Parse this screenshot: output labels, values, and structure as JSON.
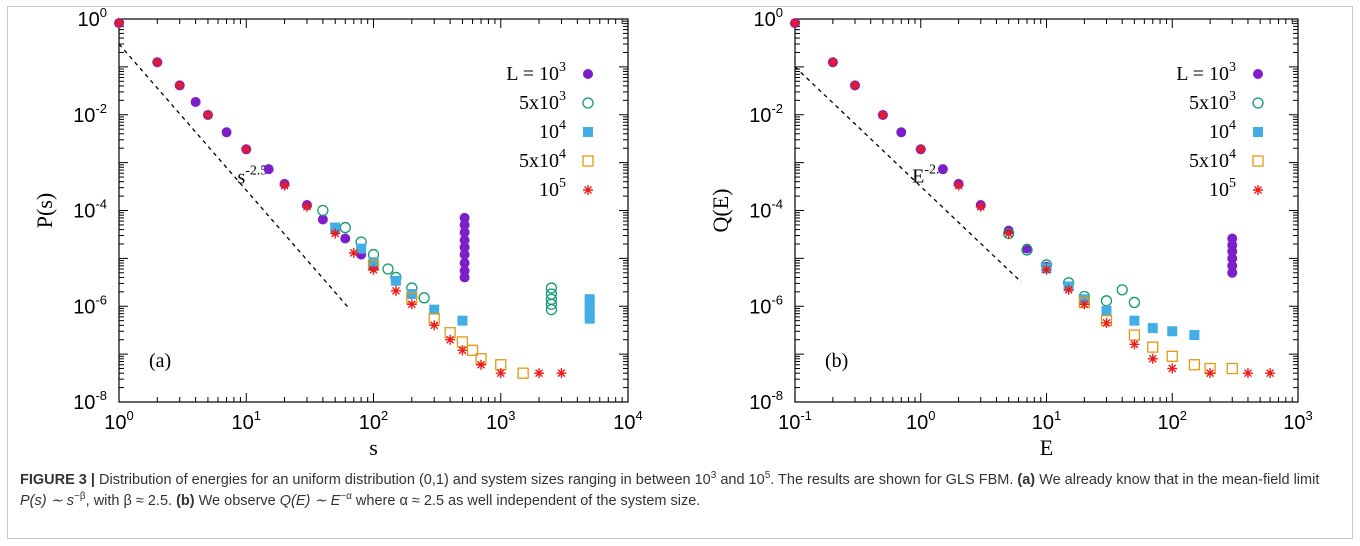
{
  "chart_data": [
    {
      "type": "scatter",
      "panel_label": "(a)",
      "xlabel": "s",
      "ylabel": "P(s)",
      "xscale": "log",
      "yscale": "log",
      "xlim": [
        1,
        10000
      ],
      "ylim": [
        1e-08,
        1
      ],
      "x_ticks": [
        {
          "base": "10",
          "exp": "0"
        },
        {
          "base": "10",
          "exp": "1"
        },
        {
          "base": "10",
          "exp": "2"
        },
        {
          "base": "10",
          "exp": "3"
        },
        {
          "base": "10",
          "exp": "4"
        }
      ],
      "y_ticks": [
        {
          "base": "10",
          "exp": "0"
        },
        {
          "base": "10",
          "exp": "-2"
        },
        {
          "base": "10",
          "exp": "-4"
        },
        {
          "base": "10",
          "exp": "-6"
        },
        {
          "base": "10",
          "exp": "-8"
        }
      ],
      "annotation": {
        "base": "s",
        "exp": "-2.5"
      },
      "reference_line": {
        "slope": -2.5,
        "points": [
          [
            1,
            0.3
          ],
          [
            63,
            9.6e-07
          ]
        ]
      },
      "legend_position": "top-right",
      "series": [
        {
          "name": "L = 10^3",
          "label": {
            "base": "L = 10",
            "exp": "3"
          },
          "marker": "filled-circle",
          "color": "#7d1fc8",
          "points": [
            [
              1,
              0.82
            ],
            [
              2,
              0.125
            ],
            [
              3,
              0.041
            ],
            [
              4,
              0.0185
            ],
            [
              5,
              0.0099
            ],
            [
              7,
              0.0043
            ],
            [
              10,
              0.0019
            ],
            [
              15,
              0.00073
            ],
            [
              20,
              0.00036
            ],
            [
              30,
              0.00013
            ],
            [
              40,
              6.5e-05
            ],
            [
              50,
              3.8e-05
            ],
            [
              60,
              2.6e-05
            ],
            [
              80,
              1.2e-05
            ],
            [
              100,
              6.7e-06
            ],
            [
              520,
              7e-05
            ],
            [
              520,
              5e-05
            ],
            [
              520,
              3.5e-05
            ],
            [
              520,
              2.4e-05
            ],
            [
              520,
              1.7e-05
            ],
            [
              520,
              1.2e-05
            ],
            [
              520,
              8e-06
            ],
            [
              520,
              5.5e-06
            ],
            [
              520,
              4e-06
            ]
          ]
        },
        {
          "name": "5x10^3",
          "label": {
            "base": "5x10",
            "exp": "3"
          },
          "marker": "open-circle",
          "color": "#119a72",
          "points": [
            [
              40,
              0.0001
            ],
            [
              60,
              4.4e-05
            ],
            [
              80,
              2.2e-05
            ],
            [
              100,
              1.2e-05
            ],
            [
              130,
              6e-06
            ],
            [
              150,
              4e-06
            ],
            [
              200,
              2.4e-06
            ],
            [
              250,
              1.5e-06
            ],
            [
              2500,
              2.4e-06
            ],
            [
              2500,
              1.8e-06
            ],
            [
              2500,
              1.4e-06
            ],
            [
              2500,
              1.1e-06
            ],
            [
              2500,
              8.5e-07
            ]
          ]
        },
        {
          "name": "10^4",
          "label": {
            "base": "10",
            "exp": "4"
          },
          "marker": "filled-square",
          "color": "#43aee5",
          "points": [
            [
              50,
              4.4e-05
            ],
            [
              80,
              1.6e-05
            ],
            [
              100,
              8.3e-06
            ],
            [
              150,
              3.4e-06
            ],
            [
              200,
              1.8e-06
            ],
            [
              300,
              8.5e-07
            ],
            [
              500,
              5e-07
            ],
            [
              5000,
              1.4e-06
            ],
            [
              5000,
              1e-06
            ],
            [
              5000,
              7.5e-07
            ],
            [
              5000,
              5.5e-07
            ]
          ]
        },
        {
          "name": "5x10^4",
          "label": {
            "base": "5x10",
            "exp": "4"
          },
          "marker": "open-square",
          "color": "#e39a10",
          "points": [
            [
              100,
              7.2e-06
            ],
            [
              200,
              1.5e-06
            ],
            [
              300,
              5.5e-07
            ],
            [
              400,
              2.8e-07
            ],
            [
              500,
              1.8e-07
            ],
            [
              600,
              1.2e-07
            ],
            [
              700,
              8e-08
            ],
            [
              1000,
              6e-08
            ],
            [
              1500,
              4e-08
            ]
          ]
        },
        {
          "name": "10^5",
          "label": {
            "base": "10",
            "exp": "5"
          },
          "marker": "asterisk",
          "color": "#ee1b1b",
          "points": [
            [
              1,
              0.82
            ],
            [
              2,
              0.125
            ],
            [
              3,
              0.041
            ],
            [
              5,
              0.0099
            ],
            [
              10,
              0.0019
            ],
            [
              20,
              0.00033
            ],
            [
              30,
              0.00012
            ],
            [
              50,
              3.3e-05
            ],
            [
              70,
              1.3e-05
            ],
            [
              100,
              5.8e-06
            ],
            [
              150,
              2.1e-06
            ],
            [
              200,
              1.1e-06
            ],
            [
              300,
              4e-07
            ],
            [
              400,
              2e-07
            ],
            [
              500,
              1.2e-07
            ],
            [
              700,
              6e-08
            ],
            [
              1000,
              4e-08
            ],
            [
              2000,
              4e-08
            ],
            [
              3000,
              4e-08
            ]
          ]
        }
      ]
    },
    {
      "type": "scatter",
      "panel_label": "(b)",
      "xlabel": "E",
      "ylabel": "Q(E)",
      "xscale": "log",
      "yscale": "log",
      "xlim": [
        0.1,
        1000
      ],
      "ylim": [
        1e-08,
        1
      ],
      "x_ticks": [
        {
          "base": "10",
          "exp": "-1"
        },
        {
          "base": "10",
          "exp": "0"
        },
        {
          "base": "10",
          "exp": "1"
        },
        {
          "base": "10",
          "exp": "2"
        },
        {
          "base": "10",
          "exp": "3"
        }
      ],
      "y_ticks": [
        {
          "base": "10",
          "exp": "0"
        },
        {
          "base": "10",
          "exp": "-2"
        },
        {
          "base": "10",
          "exp": "-4"
        },
        {
          "base": "10",
          "exp": "-6"
        },
        {
          "base": "10",
          "exp": "-8"
        }
      ],
      "annotation": {
        "base": "E",
        "exp": "-2.5"
      },
      "reference_line": {
        "slope": -2.5,
        "points": [
          [
            0.1,
            0.1
          ],
          [
            6.3,
            3.2e-06
          ]
        ]
      },
      "legend_position": "top-right",
      "series": [
        {
          "name": "L = 10^3",
          "label": {
            "base": "L = 10",
            "exp": "3"
          },
          "marker": "filled-circle",
          "color": "#7d1fc8",
          "points": [
            [
              0.1,
              0.82
            ],
            [
              0.2,
              0.125
            ],
            [
              0.3,
              0.041
            ],
            [
              0.5,
              0.0099
            ],
            [
              0.7,
              0.0043
            ],
            [
              1,
              0.0019
            ],
            [
              1.5,
              0.00073
            ],
            [
              2,
              0.00036
            ],
            [
              3,
              0.00013
            ],
            [
              5,
              3.8e-05
            ],
            [
              7,
              1.6e-05
            ],
            [
              10,
              6.7e-06
            ],
            [
              300,
              2.6e-05
            ],
            [
              300,
              1.9e-05
            ],
            [
              300,
              1.4e-05
            ],
            [
              300,
              1e-05
            ],
            [
              300,
              7e-06
            ],
            [
              300,
              5e-06
            ]
          ]
        },
        {
          "name": "5x10^3",
          "label": {
            "base": "5x10",
            "exp": "3"
          },
          "marker": "open-circle",
          "color": "#119a72",
          "points": [
            [
              5,
              3.3e-05
            ],
            [
              7,
              1.5e-05
            ],
            [
              10,
              7.3e-06
            ],
            [
              15,
              3.1e-06
            ],
            [
              20,
              1.6e-06
            ],
            [
              30,
              1.3e-06
            ],
            [
              40,
              2.2e-06
            ],
            [
              50,
              1.2e-06
            ]
          ]
        },
        {
          "name": "10^4",
          "label": {
            "base": "10",
            "exp": "4"
          },
          "marker": "filled-square",
          "color": "#43aee5",
          "points": [
            [
              10,
              6.2e-06
            ],
            [
              15,
              2.6e-06
            ],
            [
              20,
              1.4e-06
            ],
            [
              30,
              8e-07
            ],
            [
              50,
              5e-07
            ],
            [
              70,
              3.5e-07
            ],
            [
              100,
              3e-07
            ],
            [
              150,
              2.5e-07
            ]
          ]
        },
        {
          "name": "5x10^4",
          "label": {
            "base": "5x10",
            "exp": "4"
          },
          "marker": "open-square",
          "color": "#e39a10",
          "points": [
            [
              20,
              1.2e-06
            ],
            [
              30,
              5e-07
            ],
            [
              50,
              2.5e-07
            ],
            [
              70,
              1.4e-07
            ],
            [
              100,
              9e-08
            ],
            [
              150,
              6e-08
            ],
            [
              200,
              5e-08
            ],
            [
              300,
              5e-08
            ]
          ]
        },
        {
          "name": "10^5",
          "label": {
            "base": "10",
            "exp": "5"
          },
          "marker": "asterisk",
          "color": "#ee1b1b",
          "points": [
            [
              0.1,
              0.82
            ],
            [
              0.2,
              0.125
            ],
            [
              0.3,
              0.041
            ],
            [
              0.5,
              0.0099
            ],
            [
              1,
              0.0019
            ],
            [
              2,
              0.00033
            ],
            [
              3,
              0.00012
            ],
            [
              5,
              3.3e-05
            ],
            [
              10,
              5.8e-06
            ],
            [
              15,
              2.2e-06
            ],
            [
              20,
              1.1e-06
            ],
            [
              30,
              4.5e-07
            ],
            [
              50,
              1.6e-07
            ],
            [
              70,
              8e-08
            ],
            [
              100,
              5e-08
            ],
            [
              200,
              4e-08
            ],
            [
              400,
              4e-08
            ],
            [
              600,
              4e-08
            ]
          ]
        }
      ]
    }
  ],
  "caption": {
    "fig_label": "FIGURE 3 |",
    "text_1": " Distribution of energies for an uniform distribution (0,1) and system sizes ranging in between 10",
    "sup_1": "3",
    "text_2": " and 10",
    "sup_2": "5",
    "text_3": ". The results are shown for GLS FBM. ",
    "bold_a": "(a)",
    "text_4": " We already know that in the mean-field limit ",
    "formula_a": "P(s) ∼ s",
    "sup_a": "−β",
    "text_5": ", with β ≈ 2.5. ",
    "bold_b": "(b)",
    "text_6": " We observe ",
    "formula_b": "Q(E) ∼ E",
    "sup_b": "−α",
    "text_7": " where α ≈ 2.5 as well independent of the system size."
  }
}
